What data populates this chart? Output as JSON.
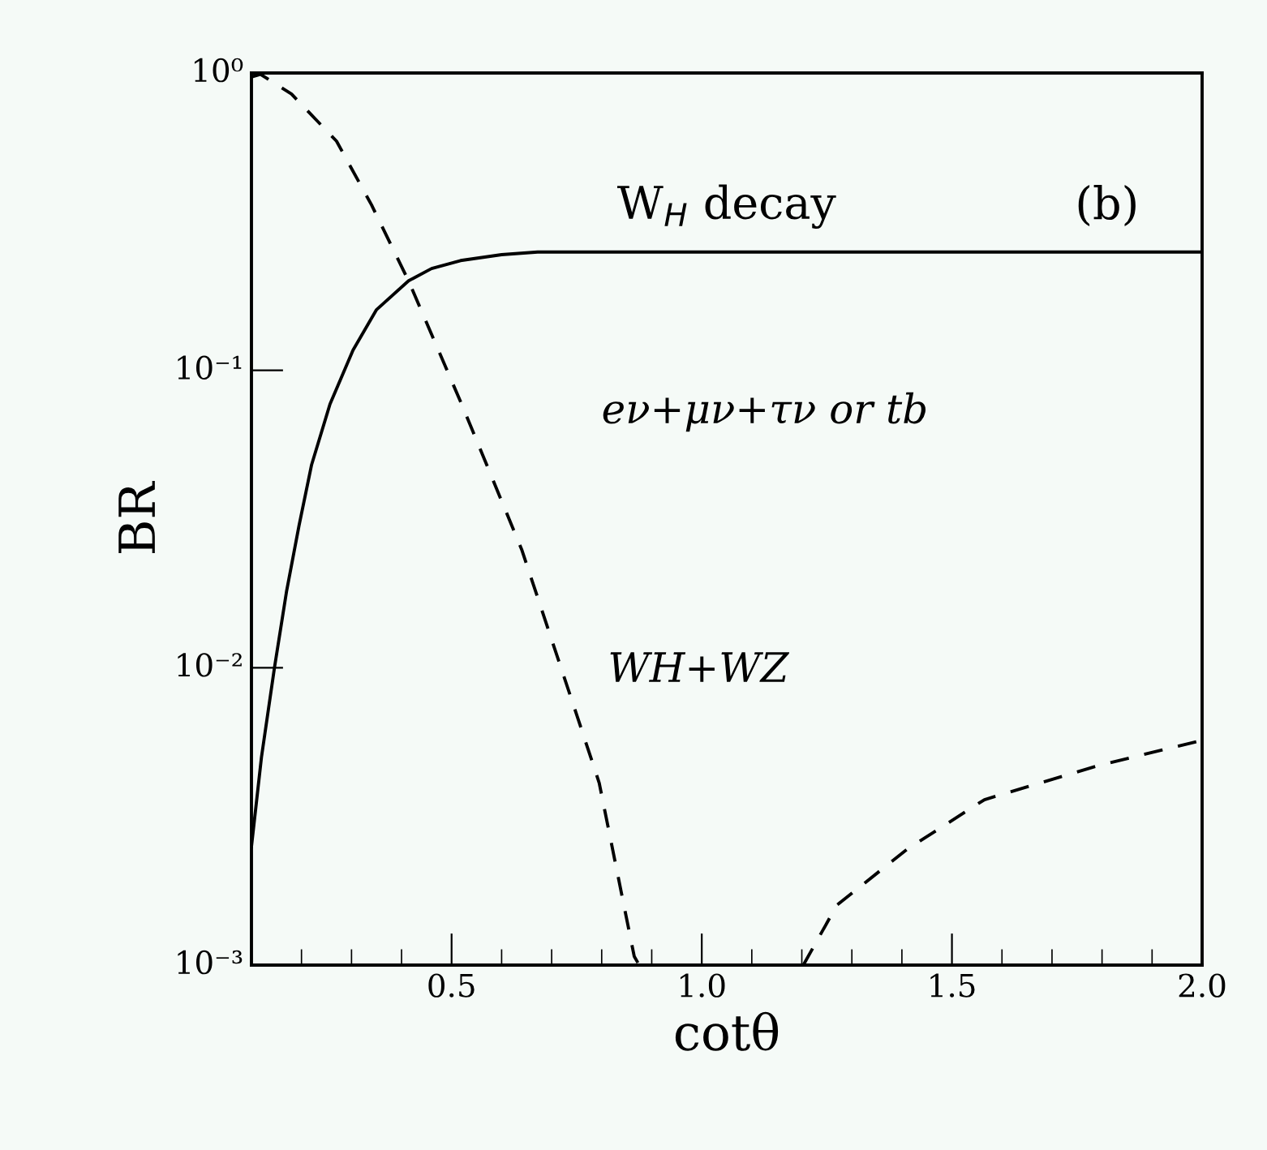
{
  "chart_data": {
    "type": "line",
    "title": "W$_{H}$ decay",
    "xlabel": "cotθ",
    "ylabel": "BR",
    "log": "y",
    "xlim": [
      0.1,
      2.0
    ],
    "ylim": [
      0.001,
      1
    ],
    "xticks": [
      0.5,
      {
        "value": 1.0,
        "label": "1.0"
      },
      1.5,
      {
        "value": 2.0,
        "label": "2.0"
      }
    ],
    "yticks": [
      {
        "value": 0.001,
        "label": "10⁻³"
      },
      {
        "value": 0.01,
        "label": "10⁻²"
      },
      {
        "value": 0.1,
        "label": "10⁻¹"
      },
      {
        "value": 1,
        "label": "10⁰"
      }
    ],
    "grid": false,
    "legend": false,
    "marker": "none",
    "annotations": [
      "(b)",
      "eν+μν+τν or tb",
      "WH+WZ"
    ],
    "series": [
      {
        "color": "#000000",
        "line_style": "solid",
        "x": [
          0.1,
          0.12,
          0.146,
          0.17,
          0.195,
          0.22,
          0.257,
          0.303,
          0.35,
          0.414,
          0.46,
          0.518,
          0.6,
          0.672,
          2.0
        ],
        "values": [
          0.0025,
          0.005,
          0.01,
          0.018,
          0.03,
          0.048,
          0.077,
          0.117,
          0.16,
          0.2,
          0.22,
          0.234,
          0.245,
          0.25,
          0.25
        ]
      },
      {
        "color": "#000000",
        "line_style": "dashed",
        "x": [
          0.1,
          0.118,
          0.18,
          0.27,
          0.34,
          0.414,
          0.52,
          0.64,
          0.757,
          0.795,
          0.865,
          0.875,
          1.0,
          1.203,
          1.27,
          1.41,
          1.565,
          1.795,
          2.0
        ],
        "values": [
          0.97,
          0.99,
          0.85,
          0.59,
          0.36,
          0.2,
          0.077,
          0.025,
          0.0064,
          0.0041,
          0.00107,
          0.001,
          null,
          0.001,
          0.00159,
          0.00245,
          0.0036,
          0.0047,
          0.0057
        ]
      }
    ]
  }
}
